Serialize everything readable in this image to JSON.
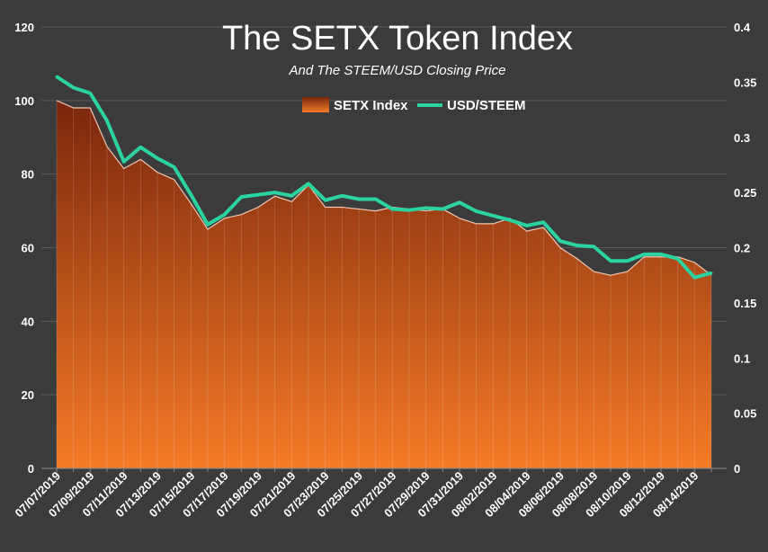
{
  "chart_data": {
    "type": "area",
    "title": "The SETX Token Index",
    "subtitle": "And The STEEM/USD Closing Price",
    "xlabel": "",
    "ylabel": "",
    "y2label": "",
    "ylim": [
      0,
      120
    ],
    "y2lim": [
      0,
      0.4
    ],
    "y_ticks": [
      "0",
      "20",
      "40",
      "60",
      "80",
      "100",
      "120"
    ],
    "y2_ticks": [
      "0",
      "0.05",
      "0.1",
      "0.15",
      "0.2",
      "0.25",
      "0.3",
      "0.35",
      "0.4"
    ],
    "x_tick_labels": [
      "07/07/2019",
      "07/09/2019",
      "07/11/2019",
      "07/13/2019",
      "07/15/2019",
      "07/17/2019",
      "07/19/2019",
      "07/21/2019",
      "07/23/2019",
      "07/25/2019",
      "07/27/2019",
      "07/29/2019",
      "07/31/2019",
      "08/02/2019",
      "08/04/2019",
      "08/06/2019",
      "08/08/2019",
      "08/10/2019",
      "08/12/2019",
      "08/14/2019"
    ],
    "grid": true,
    "legend_position": "top-center",
    "series": [
      {
        "name": "SETX Index",
        "type": "area",
        "axis": "left",
        "color_top": "#7a260d",
        "color_bottom": "#f47b27",
        "values": [
          100,
          98,
          98,
          87.5,
          81.5,
          84,
          80.5,
          78.5,
          72,
          65,
          68,
          69,
          71,
          74,
          72.5,
          77,
          71,
          71,
          70.5,
          70,
          71,
          70.5,
          70,
          70.5,
          68,
          66.5,
          66.5,
          68,
          64.5,
          65.5,
          60,
          57,
          53.5,
          52.5,
          53.5,
          57.5,
          57.5,
          57.5,
          56,
          52.5
        ]
      },
      {
        "name": "USD/STEEM",
        "type": "line",
        "axis": "right",
        "color": "#2ad3a0",
        "values": [
          0.355,
          0.345,
          0.34,
          0.315,
          0.278,
          0.291,
          0.281,
          0.273,
          0.248,
          0.221,
          0.23,
          0.246,
          0.248,
          0.25,
          0.247,
          0.258,
          0.243,
          0.247,
          0.244,
          0.244,
          0.235,
          0.234,
          0.236,
          0.235,
          0.241,
          0.233,
          0.229,
          0.225,
          0.22,
          0.223,
          0.206,
          0.202,
          0.201,
          0.188,
          0.188,
          0.194,
          0.194,
          0.19,
          0.173,
          0.177
        ]
      }
    ]
  }
}
